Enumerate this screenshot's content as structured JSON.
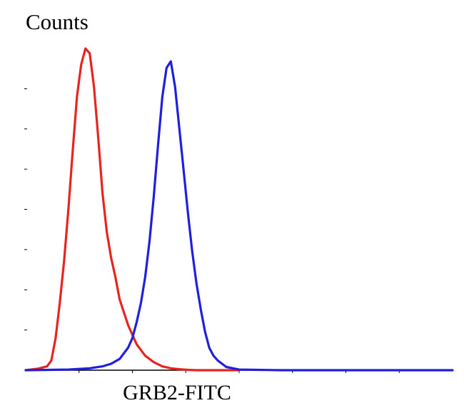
{
  "chart_data": {
    "type": "line",
    "title": "",
    "xlabel": "GRB2-FITC",
    "ylabel": "Counts",
    "xlim": [
      0,
      1
    ],
    "ylim": [
      0,
      1
    ],
    "x_ticks": [
      0.125,
      0.25,
      0.375,
      0.5,
      0.625,
      0.75,
      0.875
    ],
    "y_ticks": [
      0.125,
      0.25,
      0.375,
      0.5,
      0.625,
      0.75,
      0.875
    ],
    "grid": false,
    "legend": "none",
    "series": [
      {
        "color": "#e8241f",
        "x": [
          0.0,
          0.03,
          0.05,
          0.06,
          0.07,
          0.08,
          0.09,
          0.1,
          0.11,
          0.12,
          0.13,
          0.14,
          0.15,
          0.16,
          0.17,
          0.18,
          0.19,
          0.2,
          0.21,
          0.22,
          0.24,
          0.26,
          0.28,
          0.3,
          0.32,
          0.34,
          0.36,
          0.38,
          0.4,
          0.45,
          0.5
        ],
        "values": [
          0.0,
          0.005,
          0.012,
          0.03,
          0.1,
          0.21,
          0.34,
          0.5,
          0.68,
          0.85,
          0.95,
          1.0,
          0.985,
          0.88,
          0.72,
          0.55,
          0.43,
          0.35,
          0.29,
          0.22,
          0.14,
          0.08,
          0.045,
          0.025,
          0.012,
          0.006,
          0.003,
          0.001,
          0.0,
          0.0,
          0.0
        ]
      },
      {
        "color": "#1f1fe0",
        "x": [
          0.0,
          0.1,
          0.15,
          0.18,
          0.2,
          0.22,
          0.24,
          0.25,
          0.26,
          0.27,
          0.28,
          0.29,
          0.3,
          0.31,
          0.32,
          0.33,
          0.34,
          0.35,
          0.36,
          0.37,
          0.38,
          0.39,
          0.4,
          0.41,
          0.42,
          0.43,
          0.44,
          0.45,
          0.47,
          0.5,
          0.6,
          0.8,
          1.0
        ],
        "values": [
          0.0,
          0.002,
          0.006,
          0.012,
          0.02,
          0.035,
          0.07,
          0.1,
          0.15,
          0.21,
          0.29,
          0.4,
          0.54,
          0.7,
          0.85,
          0.94,
          0.96,
          0.88,
          0.75,
          0.62,
          0.49,
          0.37,
          0.27,
          0.19,
          0.12,
          0.07,
          0.045,
          0.03,
          0.01,
          0.002,
          0.0,
          0.0,
          0.0
        ]
      }
    ]
  }
}
